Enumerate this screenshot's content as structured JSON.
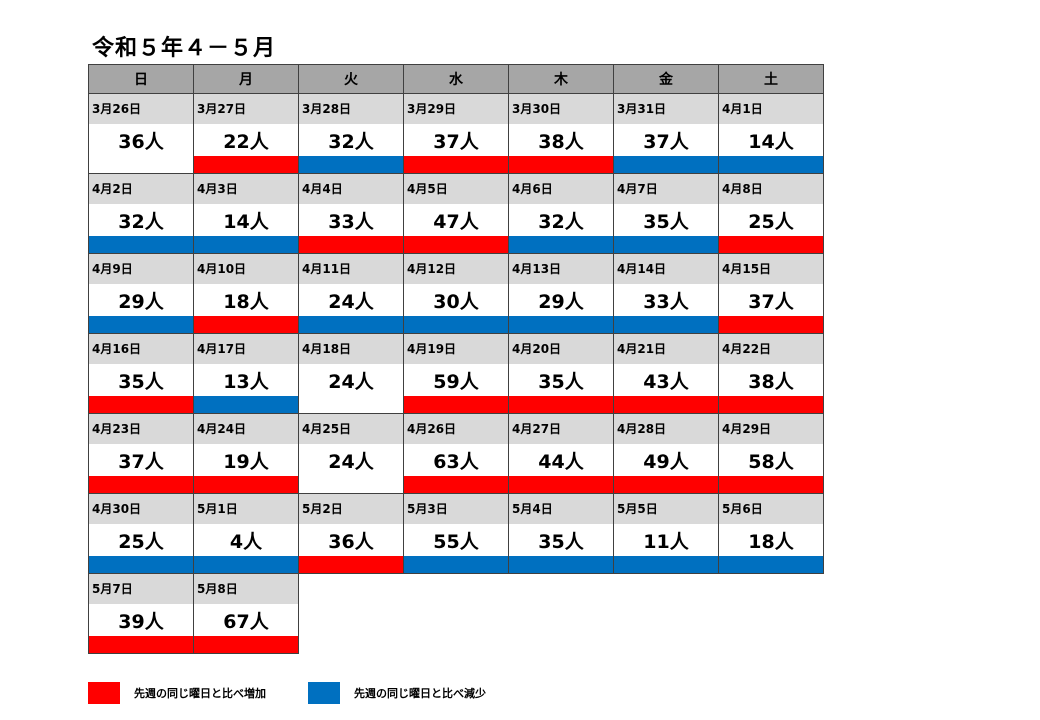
{
  "title": "令和５年４－５月",
  "colors": {
    "increase": "#ff0000",
    "decrease": "#0070c0",
    "header_bg": "#a6a6a6",
    "date_bg": "#d9d9d9"
  },
  "weekdays": [
    "日",
    "月",
    "火",
    "水",
    "木",
    "金",
    "土"
  ],
  "weeks": [
    [
      {
        "date": "3月26日",
        "count": "36人",
        "trend": "none"
      },
      {
        "date": "3月27日",
        "count": "22人",
        "trend": "up"
      },
      {
        "date": "3月28日",
        "count": "32人",
        "trend": "down"
      },
      {
        "date": "3月29日",
        "count": "37人",
        "trend": "up"
      },
      {
        "date": "3月30日",
        "count": "38人",
        "trend": "up"
      },
      {
        "date": "3月31日",
        "count": "37人",
        "trend": "down"
      },
      {
        "date": "4月1日",
        "count": "14人",
        "trend": "down"
      }
    ],
    [
      {
        "date": "4月2日",
        "count": "32人",
        "trend": "down"
      },
      {
        "date": "4月3日",
        "count": "14人",
        "trend": "down"
      },
      {
        "date": "4月4日",
        "count": "33人",
        "trend": "up"
      },
      {
        "date": "4月5日",
        "count": "47人",
        "trend": "up"
      },
      {
        "date": "4月6日",
        "count": "32人",
        "trend": "down"
      },
      {
        "date": "4月7日",
        "count": "35人",
        "trend": "down"
      },
      {
        "date": "4月8日",
        "count": "25人",
        "trend": "up"
      }
    ],
    [
      {
        "date": "4月9日",
        "count": "29人",
        "trend": "down"
      },
      {
        "date": "4月10日",
        "count": "18人",
        "trend": "up"
      },
      {
        "date": "4月11日",
        "count": "24人",
        "trend": "down"
      },
      {
        "date": "4月12日",
        "count": "30人",
        "trend": "down"
      },
      {
        "date": "4月13日",
        "count": "29人",
        "trend": "down"
      },
      {
        "date": "4月14日",
        "count": "33人",
        "trend": "down"
      },
      {
        "date": "4月15日",
        "count": "37人",
        "trend": "up"
      }
    ],
    [
      {
        "date": "4月16日",
        "count": "35人",
        "trend": "up"
      },
      {
        "date": "4月17日",
        "count": "13人",
        "trend": "down"
      },
      {
        "date": "4月18日",
        "count": "24人",
        "trend": "none"
      },
      {
        "date": "4月19日",
        "count": "59人",
        "trend": "up"
      },
      {
        "date": "4月20日",
        "count": "35人",
        "trend": "up"
      },
      {
        "date": "4月21日",
        "count": "43人",
        "trend": "up"
      },
      {
        "date": "4月22日",
        "count": "38人",
        "trend": "up"
      }
    ],
    [
      {
        "date": "4月23日",
        "count": "37人",
        "trend": "up"
      },
      {
        "date": "4月24日",
        "count": "19人",
        "trend": "up"
      },
      {
        "date": "4月25日",
        "count": "24人",
        "trend": "none"
      },
      {
        "date": "4月26日",
        "count": "63人",
        "trend": "up"
      },
      {
        "date": "4月27日",
        "count": "44人",
        "trend": "up"
      },
      {
        "date": "4月28日",
        "count": "49人",
        "trend": "up"
      },
      {
        "date": "4月29日",
        "count": "58人",
        "trend": "up"
      }
    ],
    [
      {
        "date": "4月30日",
        "count": "25人",
        "trend": "down"
      },
      {
        "date": "5月1日",
        "count": "4人",
        "trend": "down"
      },
      {
        "date": "5月2日",
        "count": "36人",
        "trend": "up"
      },
      {
        "date": "5月3日",
        "count": "55人",
        "trend": "down"
      },
      {
        "date": "5月4日",
        "count": "35人",
        "trend": "down"
      },
      {
        "date": "5月5日",
        "count": "11人",
        "trend": "down"
      },
      {
        "date": "5月6日",
        "count": "18人",
        "trend": "down"
      }
    ],
    [
      {
        "date": "5月7日",
        "count": "39人",
        "trend": "up"
      },
      {
        "date": "5月8日",
        "count": "67人",
        "trend": "up"
      }
    ]
  ],
  "legend": {
    "increase_label": "先週の同じ曜日と比べ増加",
    "decrease_label": "先週の同じ曜日と比べ減少"
  }
}
